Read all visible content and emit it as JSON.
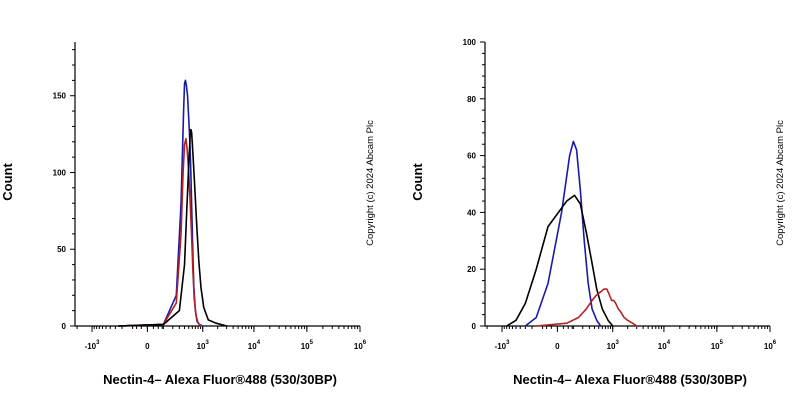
{
  "chart_data": [
    {
      "type": "line",
      "xlabel": "Nectin-4– Alexa Fluor®488 (530/30BP)",
      "ylabel": "Count",
      "copyright": "Copyright (c) 2024 Abcam Plc",
      "x_scale": "biexponential",
      "xlim": [
        -2200,
        1000000
      ],
      "ylim": [
        0,
        185
      ],
      "y_ticks": [
        0,
        50,
        100,
        150
      ],
      "x_ticks": [
        {
          "base": "-10",
          "exp": "3",
          "value": -1000
        },
        {
          "base": "0",
          "exp": "",
          "value": 0
        },
        {
          "base": "10",
          "exp": "3",
          "value": 1000
        },
        {
          "base": "10",
          "exp": "4",
          "value": 10000
        },
        {
          "base": "10",
          "exp": "5",
          "value": 100000
        },
        {
          "base": "10",
          "exp": "6",
          "value": 1000000
        }
      ],
      "series": [
        {
          "color": "#1a1aa6",
          "points": [
            [
              -250,
              0
            ],
            [
              100,
              1
            ],
            [
              250,
              20
            ],
            [
              330,
              80
            ],
            [
              380,
              140
            ],
            [
              400,
              158
            ],
            [
              420,
              160
            ],
            [
              440,
              157
            ],
            [
              470,
              150
            ],
            [
              500,
              135
            ],
            [
              530,
              120
            ],
            [
              560,
              98
            ],
            [
              590,
              70
            ],
            [
              620,
              45
            ],
            [
              650,
              25
            ],
            [
              700,
              10
            ],
            [
              760,
              3
            ],
            [
              850,
              1
            ],
            [
              1000,
              0
            ]
          ]
        },
        {
          "color": "#b22222",
          "points": [
            [
              -250,
              0
            ],
            [
              100,
              1
            ],
            [
              250,
              15
            ],
            [
              330,
              60
            ],
            [
              370,
              100
            ],
            [
              400,
              118
            ],
            [
              430,
              122
            ],
            [
              460,
              115
            ],
            [
              500,
              100
            ],
            [
              540,
              80
            ],
            [
              580,
              58
            ],
            [
              620,
              35
            ],
            [
              660,
              18
            ],
            [
              720,
              7
            ],
            [
              800,
              2
            ],
            [
              900,
              0
            ]
          ]
        },
        {
          "color": "#000000",
          "points": [
            [
              -250,
              0
            ],
            [
              100,
              1
            ],
            [
              300,
              10
            ],
            [
              400,
              40
            ],
            [
              450,
              75
            ],
            [
              500,
              105
            ],
            [
              540,
              125
            ],
            [
              560,
              128
            ],
            [
              580,
              126
            ],
            [
              620,
              112
            ],
            [
              680,
              90
            ],
            [
              750,
              65
            ],
            [
              830,
              42
            ],
            [
              920,
              25
            ],
            [
              1050,
              12
            ],
            [
              1300,
              4
            ],
            [
              1800,
              2
            ],
            [
              3000,
              0
            ]
          ]
        }
      ]
    },
    {
      "type": "line",
      "xlabel": "Nectin-4– Alexa Fluor®488 (530/30BP)",
      "ylabel": "Count",
      "copyright": "Copyright (c) 2024 Abcam Plc",
      "x_scale": "biexponential",
      "xlim": [
        -2200,
        1000000
      ],
      "ylim": [
        0,
        100
      ],
      "y_ticks": [
        0,
        20,
        40,
        60,
        80,
        100
      ],
      "x_ticks": [
        {
          "base": "-10",
          "exp": "3",
          "value": -1000
        },
        {
          "base": "0",
          "exp": "",
          "value": 0
        },
        {
          "base": "10",
          "exp": "3",
          "value": 1000
        },
        {
          "base": "10",
          "exp": "4",
          "value": 10000
        },
        {
          "base": "10",
          "exp": "5",
          "value": 100000
        },
        {
          "base": "10",
          "exp": "6",
          "value": 1000000
        }
      ],
      "series": [
        {
          "color": "#1a1aa6",
          "points": [
            [
              -300,
              0
            ],
            [
              -150,
              3
            ],
            [
              -50,
              15
            ],
            [
              20,
              40
            ],
            [
              70,
              60
            ],
            [
              100,
              65
            ],
            [
              130,
              62
            ],
            [
              170,
              48
            ],
            [
              220,
              30
            ],
            [
              280,
              15
            ],
            [
              350,
              6
            ],
            [
              450,
              2
            ],
            [
              550,
              0
            ]
          ]
        },
        {
          "color": "#000000",
          "points": [
            [
              -800,
              0
            ],
            [
              -500,
              2
            ],
            [
              -300,
              8
            ],
            [
              -150,
              20
            ],
            [
              -50,
              35
            ],
            [
              50,
              44
            ],
            [
              110,
              46
            ],
            [
              170,
              43
            ],
            [
              250,
              33
            ],
            [
              350,
              22
            ],
            [
              450,
              13
            ],
            [
              600,
              6
            ],
            [
              800,
              2
            ],
            [
              1000,
              0
            ]
          ]
        },
        {
          "color": "#b22222",
          "points": [
            [
              -150,
              0
            ],
            [
              50,
              1
            ],
            [
              150,
              3
            ],
            [
              250,
              6
            ],
            [
              350,
              9
            ],
            [
              450,
              11
            ],
            [
              550,
              12
            ],
            [
              650,
              13
            ],
            [
              750,
              13
            ],
            [
              850,
              11
            ],
            [
              950,
              9
            ],
            [
              1050,
              9
            ],
            [
              1150,
              8
            ],
            [
              1300,
              6
            ],
            [
              1450,
              5
            ],
            [
              1700,
              3
            ],
            [
              2000,
              2
            ],
            [
              2500,
              1
            ],
            [
              3000,
              0
            ]
          ]
        }
      ]
    }
  ]
}
